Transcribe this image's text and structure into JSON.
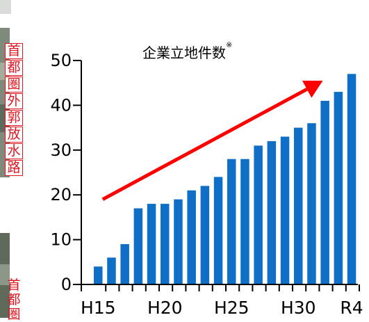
{
  "side_labels": {
    "top": [
      "首",
      "都",
      "圏",
      "外",
      "郭",
      "放",
      "水",
      "路"
    ],
    "bottom": [
      "首",
      "都",
      "圏"
    ]
  },
  "chart_data": {
    "type": "bar",
    "title": "企業立地件数",
    "title_mark": "※",
    "x": [
      15,
      16,
      17,
      18,
      19,
      20,
      21,
      22,
      23,
      24,
      25,
      26,
      27,
      28,
      29,
      30,
      31,
      32,
      33,
      34
    ],
    "values": [
      4,
      6,
      9,
      17,
      18,
      18,
      19,
      21,
      22,
      24,
      28,
      28,
      31,
      32,
      33,
      35,
      36,
      41,
      43,
      47
    ],
    "x_tick_labels": [
      {
        "x": 15,
        "label": "H15"
      },
      {
        "x": 20,
        "label": "H20"
      },
      {
        "x": 25,
        "label": "H25"
      },
      {
        "x": 30,
        "label": "H30"
      },
      {
        "x": 34,
        "label": "R4"
      }
    ],
    "y_ticks": [
      0,
      10,
      20,
      30,
      40,
      50
    ],
    "y_tick_labels": [
      "0",
      "10",
      "20",
      "30",
      "40",
      "50"
    ],
    "ylim": [
      0,
      50
    ],
    "bar_color": "#0f6fc6",
    "trend_arrow": {
      "from": [
        15.3,
        19
      ],
      "to": [
        31.8,
        45.5
      ],
      "color": "#ff0000"
    },
    "grid": false
  }
}
